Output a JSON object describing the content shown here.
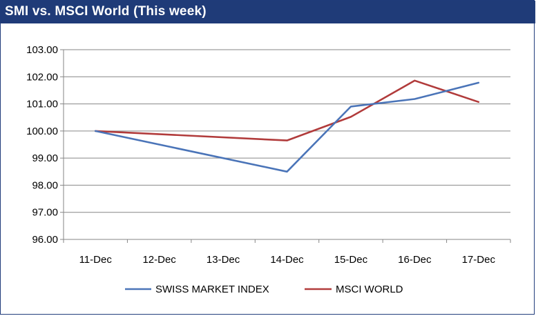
{
  "title": "SMI vs. MSCI World (This week)",
  "chart_data": {
    "type": "line",
    "title": "SMI vs. MSCI World (This week)",
    "categories": [
      "11-Dec",
      "12-Dec",
      "13-Dec",
      "14-Dec",
      "15-Dec",
      "16-Dec",
      "17-Dec"
    ],
    "ylim": [
      96.0,
      103.0
    ],
    "yticks": [
      "96.00",
      "97.00",
      "98.00",
      "99.00",
      "100.00",
      "101.00",
      "102.00",
      "103.00"
    ],
    "grid": true,
    "legend_position": "bottom",
    "series": [
      {
        "name": "SWISS MARKET INDEX",
        "color": "#4a74b8",
        "points": [
          {
            "category": "11-Dec",
            "value": 100.0
          },
          {
            "category": "14-Dec",
            "value": 98.5
          },
          {
            "category": "15-Dec",
            "value": 100.9
          },
          {
            "category": "16-Dec",
            "value": 101.18
          },
          {
            "category": "17-Dec",
            "value": 101.78
          }
        ]
      },
      {
        "name": "MSCI WORLD",
        "color": "#b13b3b",
        "points": [
          {
            "category": "11-Dec",
            "value": 100.0
          },
          {
            "category": "14-Dec",
            "value": 99.65
          },
          {
            "category": "15-Dec",
            "value": 100.52
          },
          {
            "category": "16-Dec",
            "value": 101.86
          },
          {
            "category": "17-Dec",
            "value": 101.07
          }
        ]
      }
    ]
  }
}
